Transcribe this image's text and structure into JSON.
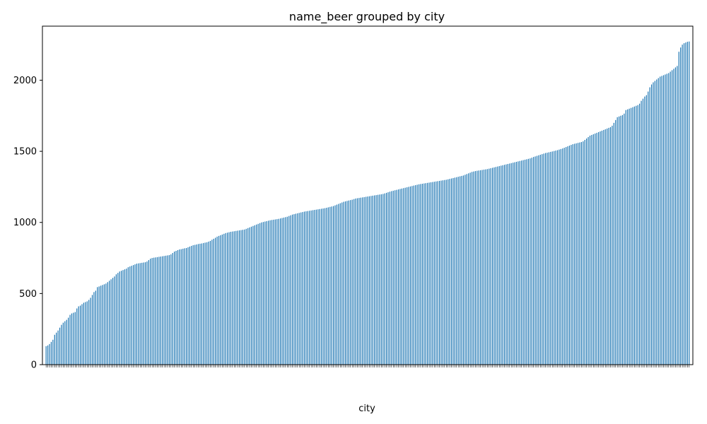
{
  "chart_data": {
    "type": "bar",
    "title": "name_beer grouped by city",
    "xlabel": "city",
    "ylabel": "",
    "ylim": [
      0,
      2380
    ],
    "yticks": [
      0,
      500,
      1000,
      1500,
      2000
    ],
    "bar_color": "#1f77b4",
    "grid": false,
    "legend": "none",
    "categories_note": "",
    "values": [
      130,
      135,
      145,
      160,
      175,
      210,
      225,
      240,
      260,
      280,
      295,
      305,
      315,
      330,
      350,
      360,
      365,
      370,
      395,
      410,
      415,
      425,
      435,
      440,
      445,
      455,
      470,
      490,
      510,
      520,
      545,
      550,
      555,
      560,
      565,
      570,
      580,
      590,
      600,
      610,
      620,
      635,
      645,
      655,
      660,
      665,
      670,
      675,
      685,
      690,
      695,
      700,
      705,
      710,
      712,
      714,
      716,
      718,
      720,
      725,
      735,
      745,
      750,
      752,
      754,
      756,
      758,
      760,
      762,
      764,
      766,
      768,
      770,
      775,
      785,
      795,
      800,
      805,
      810,
      812,
      815,
      818,
      820,
      825,
      830,
      835,
      840,
      842,
      845,
      848,
      850,
      852,
      855,
      858,
      860,
      865,
      870,
      878,
      885,
      892,
      900,
      905,
      910,
      915,
      920,
      925,
      928,
      931,
      934,
      936,
      938,
      940,
      942,
      944,
      946,
      948,
      950,
      955,
      960,
      965,
      970,
      975,
      980,
      985,
      990,
      995,
      1000,
      1003,
      1006,
      1009,
      1012,
      1015,
      1017,
      1019,
      1021,
      1023,
      1025,
      1028,
      1031,
      1034,
      1037,
      1040,
      1045,
      1050,
      1055,
      1058,
      1061,
      1064,
      1067,
      1070,
      1073,
      1076,
      1078,
      1080,
      1082,
      1084,
      1086,
      1088,
      1090,
      1092,
      1094,
      1096,
      1098,
      1100,
      1103,
      1106,
      1109,
      1112,
      1115,
      1120,
      1125,
      1130,
      1135,
      1140,
      1145,
      1148,
      1151,
      1154,
      1157,
      1160,
      1164,
      1168,
      1170,
      1172,
      1174,
      1176,
      1178,
      1180,
      1182,
      1184,
      1186,
      1188,
      1190,
      1192,
      1194,
      1196,
      1198,
      1200,
      1204,
      1208,
      1212,
      1216,
      1220,
      1223,
      1226,
      1229,
      1232,
      1235,
      1238,
      1241,
      1244,
      1247,
      1250,
      1253,
      1256,
      1259,
      1262,
      1265,
      1268,
      1270,
      1272,
      1274,
      1276,
      1278,
      1280,
      1282,
      1284,
      1286,
      1288,
      1290,
      1292,
      1294,
      1296,
      1298,
      1300,
      1303,
      1306,
      1309,
      1312,
      1315,
      1318,
      1321,
      1324,
      1327,
      1330,
      1335,
      1340,
      1345,
      1350,
      1355,
      1358,
      1361,
      1363,
      1365,
      1367,
      1369,
      1371,
      1373,
      1375,
      1378,
      1381,
      1384,
      1387,
      1390,
      1393,
      1396,
      1399,
      1402,
      1405,
      1408,
      1411,
      1414,
      1417,
      1420,
      1423,
      1426,
      1429,
      1432,
      1435,
      1438,
      1441,
      1444,
      1447,
      1450,
      1455,
      1460,
      1464,
      1468,
      1472,
      1476,
      1480,
      1484,
      1488,
      1490,
      1493,
      1496,
      1499,
      1502,
      1505,
      1508,
      1512,
      1516,
      1520,
      1525,
      1530,
      1535,
      1540,
      1545,
      1550,
      1553,
      1556,
      1559,
      1562,
      1565,
      1570,
      1580,
      1590,
      1600,
      1610,
      1615,
      1620,
      1625,
      1630,
      1635,
      1640,
      1645,
      1650,
      1655,
      1660,
      1665,
      1670,
      1680,
      1700,
      1720,
      1740,
      1745,
      1750,
      1755,
      1765,
      1790,
      1795,
      1800,
      1805,
      1810,
      1815,
      1820,
      1825,
      1835,
      1855,
      1870,
      1885,
      1895,
      1920,
      1950,
      1970,
      1985,
      1995,
      2005,
      2015,
      2025,
      2030,
      2035,
      2040,
      2045,
      2050,
      2060,
      2070,
      2080,
      2090,
      2100,
      2200,
      2230,
      2250,
      2260,
      2265,
      2270,
      2272
    ]
  }
}
